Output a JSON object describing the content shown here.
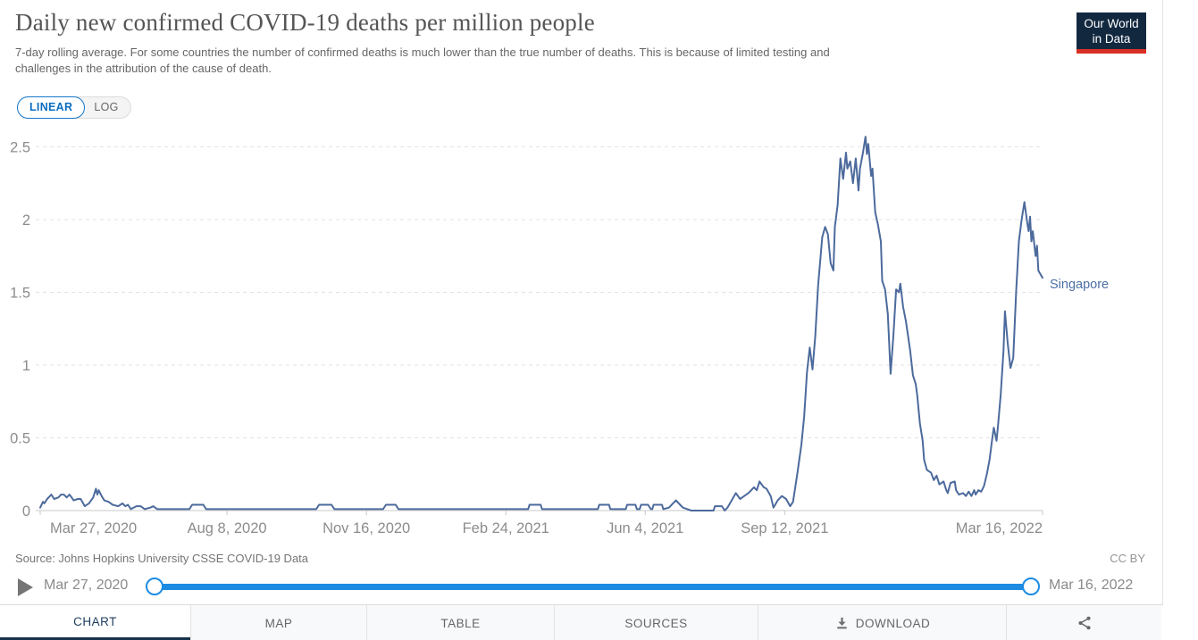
{
  "chart_data": {
    "type": "line",
    "title": "Daily new confirmed COVID-19 deaths per million people",
    "subtitle_lines": [
      "7-day rolling average. For some countries the number of confirmed deaths is much lower than the true number of deaths. This is because of limited testing and",
      "challenges in the attribution of the cause of death."
    ],
    "x_axis": {
      "start_label": "Mar 27, 2020",
      "end_label": "Mar 16, 2022",
      "total_days": 719,
      "ticks": [
        {
          "label": "Mar 27, 2020",
          "day": 0
        },
        {
          "label": "Aug 8, 2020",
          "day": 134
        },
        {
          "label": "Nov 16, 2020",
          "day": 234
        },
        {
          "label": "Feb 24, 2021",
          "day": 334
        },
        {
          "label": "Jun 4, 2021",
          "day": 434
        },
        {
          "label": "Sep 12, 2021",
          "day": 534
        },
        {
          "label": "Mar 16, 2022",
          "day": 719
        }
      ]
    },
    "y_axis": {
      "ticks": [
        {
          "label": "0",
          "value": 0
        },
        {
          "label": "0.5",
          "value": 0.5
        },
        {
          "label": "1",
          "value": 1
        },
        {
          "label": "1.5",
          "value": 1.5
        },
        {
          "label": "2",
          "value": 2
        },
        {
          "label": "2.5",
          "value": 2.5
        }
      ],
      "range": [
        0,
        2.6
      ],
      "gridlines": "dashed"
    },
    "legend_position": "right-end-of-line",
    "series": [
      {
        "name": "Singapore",
        "color": "#4C6A9C",
        "points_format": "[days_since_2020-03-27, deaths_per_million]",
        "points": [
          [
            0,
            0.02
          ],
          [
            2,
            0.06
          ],
          [
            3,
            0.05
          ],
          [
            5,
            0.08
          ],
          [
            8,
            0.11
          ],
          [
            10,
            0.08
          ],
          [
            13,
            0.09
          ],
          [
            15,
            0.11
          ],
          [
            17,
            0.11
          ],
          [
            19,
            0.09
          ],
          [
            21,
            0.11
          ],
          [
            24,
            0.07
          ],
          [
            27,
            0.08
          ],
          [
            29,
            0.08
          ],
          [
            32,
            0.03
          ],
          [
            35,
            0.05
          ],
          [
            38,
            0.09
          ],
          [
            40,
            0.15
          ],
          [
            41,
            0.11
          ],
          [
            42,
            0.14
          ],
          [
            44,
            0.1
          ],
          [
            46,
            0.07
          ],
          [
            49,
            0.06
          ],
          [
            52,
            0.04
          ],
          [
            56,
            0.03
          ],
          [
            59,
            0.05
          ],
          [
            61,
            0.03
          ],
          [
            63,
            0.04
          ],
          [
            65,
            0.01
          ],
          [
            69,
            0.03
          ],
          [
            72,
            0.03
          ],
          [
            75,
            0.01
          ],
          [
            79,
            0.02
          ],
          [
            81,
            0.03
          ],
          [
            84,
            0.01
          ],
          [
            93,
            0.01
          ],
          [
            107,
            0.01
          ],
          [
            109,
            0.04
          ],
          [
            117,
            0.04
          ],
          [
            119,
            0.01
          ],
          [
            198,
            0.01
          ],
          [
            200,
            0.04
          ],
          [
            209,
            0.04
          ],
          [
            211,
            0.01
          ],
          [
            246,
            0.01
          ],
          [
            248,
            0.04
          ],
          [
            255,
            0.04
          ],
          [
            257,
            0.01
          ],
          [
            350,
            0.01
          ],
          [
            351,
            0.04
          ],
          [
            359,
            0.04
          ],
          [
            360,
            0.01
          ],
          [
            400,
            0.01
          ],
          [
            401,
            0.04
          ],
          [
            408,
            0.04
          ],
          [
            409,
            0.01
          ],
          [
            420,
            0.01
          ],
          [
            421,
            0.04
          ],
          [
            427,
            0.04
          ],
          [
            428,
            0.01
          ],
          [
            430,
            0.01
          ],
          [
            431,
            0.04
          ],
          [
            436,
            0.04
          ],
          [
            438,
            0.01
          ],
          [
            439,
            0.01
          ],
          [
            440,
            0.04
          ],
          [
            446,
            0.04
          ],
          [
            447,
            0.01
          ],
          [
            451,
            0.02
          ],
          [
            456,
            0.07
          ],
          [
            461,
            0.02
          ],
          [
            467,
            0
          ],
          [
            483,
            0
          ],
          [
            484,
            0.03
          ],
          [
            489,
            0.03
          ],
          [
            491,
            0
          ],
          [
            493,
            0.02
          ],
          [
            496,
            0.07
          ],
          [
            499,
            0.12
          ],
          [
            502,
            0.08
          ],
          [
            505,
            0.1
          ],
          [
            508,
            0.12
          ],
          [
            512,
            0.16
          ],
          [
            514,
            0.14
          ],
          [
            516,
            0.2
          ],
          [
            519,
            0.16
          ],
          [
            521,
            0.15
          ],
          [
            524,
            0.1
          ],
          [
            526,
            0.02
          ],
          [
            529,
            0.07
          ],
          [
            532,
            0.1
          ],
          [
            535,
            0.08
          ],
          [
            538,
            0.03
          ],
          [
            540,
            0.06
          ],
          [
            543,
            0.25
          ],
          [
            546,
            0.45
          ],
          [
            548,
            0.65
          ],
          [
            550,
            0.95
          ],
          [
            552,
            1.12
          ],
          [
            554,
            0.97
          ],
          [
            556,
            1.2
          ],
          [
            558,
            1.55
          ],
          [
            561,
            1.88
          ],
          [
            563,
            1.95
          ],
          [
            565,
            1.9
          ],
          [
            567,
            1.7
          ],
          [
            569,
            1.65
          ],
          [
            570,
            1.95
          ],
          [
            572,
            2.1
          ],
          [
            574,
            2.42
          ],
          [
            576,
            2.28
          ],
          [
            578,
            2.46
          ],
          [
            579,
            2.35
          ],
          [
            581,
            2.4
          ],
          [
            583,
            2.25
          ],
          [
            585,
            2.42
          ],
          [
            587,
            2.2
          ],
          [
            588,
            2.35
          ],
          [
            590,
            2.45
          ],
          [
            592,
            2.57
          ],
          [
            593,
            2.45
          ],
          [
            594,
            2.52
          ],
          [
            596,
            2.3
          ],
          [
            597,
            2.35
          ],
          [
            599,
            2.05
          ],
          [
            601,
            1.96
          ],
          [
            603,
            1.85
          ],
          [
            604,
            1.58
          ],
          [
            606,
            1.52
          ],
          [
            608,
            1.35
          ],
          [
            610,
            0.94
          ],
          [
            612,
            1.2
          ],
          [
            614,
            1.52
          ],
          [
            616,
            1.5
          ],
          [
            617,
            1.56
          ],
          [
            619,
            1.4
          ],
          [
            621,
            1.3
          ],
          [
            624,
            1.1
          ],
          [
            626,
            0.93
          ],
          [
            628,
            0.87
          ],
          [
            629,
            0.8
          ],
          [
            631,
            0.6
          ],
          [
            633,
            0.48
          ],
          [
            634,
            0.35
          ],
          [
            636,
            0.28
          ],
          [
            639,
            0.26
          ],
          [
            641,
            0.21
          ],
          [
            643,
            0.24
          ],
          [
            645,
            0.18
          ],
          [
            648,
            0.2
          ],
          [
            650,
            0.14
          ],
          [
            651,
            0.12
          ],
          [
            653,
            0.19
          ],
          [
            656,
            0.2
          ],
          [
            657,
            0.14
          ],
          [
            659,
            0.11
          ],
          [
            662,
            0.12
          ],
          [
            664,
            0.1
          ],
          [
            666,
            0.13
          ],
          [
            668,
            0.1
          ],
          [
            670,
            0.14
          ],
          [
            671,
            0.11
          ],
          [
            673,
            0.14
          ],
          [
            675,
            0.13
          ],
          [
            677,
            0.17
          ],
          [
            679,
            0.25
          ],
          [
            681,
            0.35
          ],
          [
            683,
            0.5
          ],
          [
            684,
            0.57
          ],
          [
            686,
            0.48
          ],
          [
            687,
            0.58
          ],
          [
            689,
            0.8
          ],
          [
            691,
            1.1
          ],
          [
            692,
            1.37
          ],
          [
            694,
            1.15
          ],
          [
            696,
            0.98
          ],
          [
            698,
            1.05
          ],
          [
            700,
            1.5
          ],
          [
            702,
            1.85
          ],
          [
            704,
            2.0
          ],
          [
            706,
            2.12
          ],
          [
            708,
            1.98
          ],
          [
            709,
            1.92
          ],
          [
            710,
            2.02
          ],
          [
            711,
            1.85
          ],
          [
            712,
            1.92
          ],
          [
            714,
            1.75
          ],
          [
            715,
            1.82
          ],
          [
            716,
            1.65
          ],
          [
            719,
            1.6
          ]
        ]
      }
    ]
  },
  "header": {
    "logo_line1": "Our World",
    "logo_line2": "in Data"
  },
  "controls": {
    "linear_label": "LINEAR",
    "log_label": "LOG",
    "active_scale": "LINEAR"
  },
  "footer": {
    "source": "Source: Johns Hopkins University CSSE COVID-19 Data",
    "license": "CC BY"
  },
  "timeline": {
    "start": "Mar 27, 2020",
    "end": "Mar 16, 2022"
  },
  "tabs": [
    {
      "id": "chart",
      "label": "CHART",
      "active": true
    },
    {
      "id": "map",
      "label": "MAP",
      "active": false
    },
    {
      "id": "table",
      "label": "TABLE",
      "active": false
    },
    {
      "id": "sources",
      "label": "SOURCES",
      "active": false
    },
    {
      "id": "download",
      "label": "DOWNLOAD",
      "active": false,
      "icon": "download-icon"
    },
    {
      "id": "share",
      "label": "",
      "active": false,
      "icon": "share-icon"
    }
  ],
  "palette": {
    "line": "#4C6A9C",
    "series_label": "#4d6fa5",
    "grid": "#e3e3e3",
    "axis": "#c8c8c8",
    "axis_text": "#8c8c8c",
    "timeline_blue": "#1d8be2",
    "logo_navy": "#12283f",
    "logo_red": "#d93025",
    "tab_active_navy": "#16324a"
  }
}
